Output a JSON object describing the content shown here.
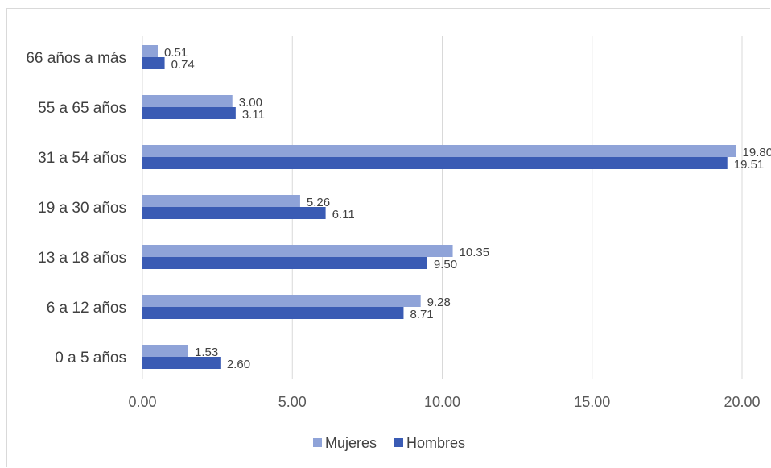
{
  "chart_data": {
    "type": "bar",
    "orientation": "horizontal",
    "categories": [
      "66 años a más",
      "55 a 65 años",
      "31 a 54 años",
      "19 a 30 años",
      "13 a 18 años",
      "6 a 12 años",
      "0 a 5 años"
    ],
    "series": [
      {
        "name": "Mujeres",
        "color": "#8fa3d8",
        "values": [
          0.51,
          3.0,
          19.8,
          5.26,
          10.35,
          9.28,
          1.53
        ],
        "labels": [
          "0.51",
          "3.00",
          "19.80",
          "5.26",
          "10.35",
          "9.28",
          "1.53"
        ]
      },
      {
        "name": "Hombres",
        "color": "#3a5bb4",
        "values": [
          0.74,
          3.11,
          19.51,
          6.11,
          9.5,
          8.71,
          2.6
        ],
        "labels": [
          "0.74",
          "3.11",
          "19.51",
          "6.11",
          "9.50",
          "8.71",
          "2.60"
        ]
      }
    ],
    "xlim": [
      0,
      20
    ],
    "xticks": [
      0,
      5,
      10,
      15,
      20
    ],
    "xtick_labels": [
      "0.00",
      "5.00",
      "10.00",
      "15.00",
      "20.00"
    ],
    "grid": true,
    "legend_position": "bottom",
    "title": "",
    "xlabel": "",
    "ylabel": ""
  }
}
